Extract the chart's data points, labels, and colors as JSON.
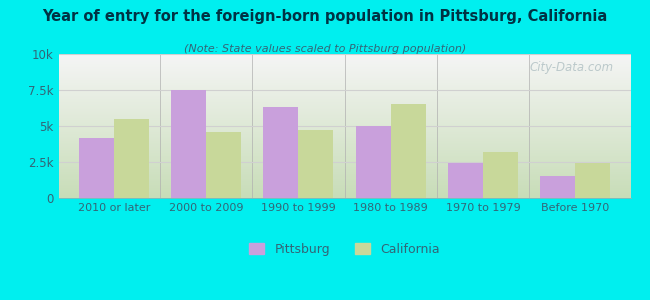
{
  "categories": [
    "2010 or later",
    "2000 to 2009",
    "1990 to 1999",
    "1980 to 1989",
    "1970 to 1979",
    "Before 1970"
  ],
  "pittsburg": [
    4200,
    7500,
    6300,
    5000,
    2400,
    1500
  ],
  "california": [
    5500,
    4600,
    4700,
    6500,
    3200,
    2400
  ],
  "pittsburg_color": "#c9a0dc",
  "california_color": "#c8d89a",
  "title": "Year of entry for the foreign-born population in Pittsburg, California",
  "subtitle": "(Note: State values scaled to Pittsburg population)",
  "ylim": [
    0,
    10000
  ],
  "yticks": [
    0,
    2500,
    5000,
    7500,
    10000
  ],
  "ytick_labels": [
    "0",
    "2.5k",
    "5k",
    "7.5k",
    "10k"
  ],
  "bg_outer": "#00efef",
  "bg_plot_bottom": "#c8e6c0",
  "bg_plot_top": "#f0f0f0",
  "title_color": "#003344",
  "subtitle_color": "#336677",
  "axis_label_color": "#336677",
  "legend_pittsburg": "Pittsburg",
  "legend_california": "California",
  "bar_width": 0.38,
  "watermark": "City-Data.com",
  "grid_color": "#d0d0d0",
  "separator_color": "#b0b0b0"
}
